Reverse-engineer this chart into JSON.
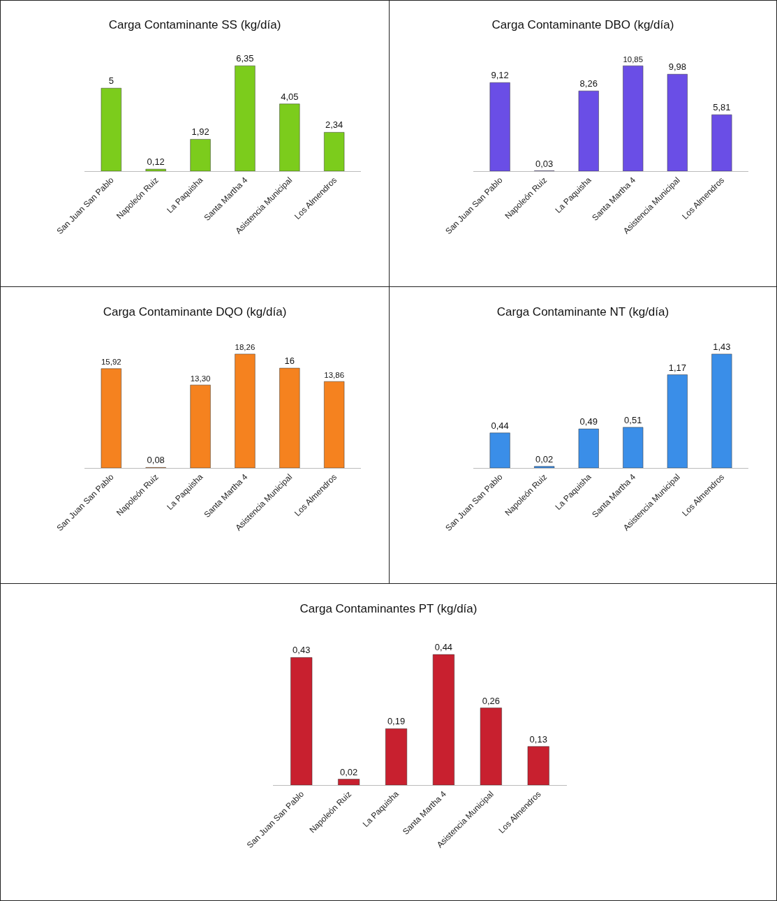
{
  "chart_data": [
    {
      "type": "bar",
      "title": "Carga Contaminante SS (kg/día)",
      "categories": [
        "San Juan San Pablo",
        "Napoleón Ruiz",
        "La Paquisha",
        "Santa Martha 4",
        "Asistencia Municipal",
        "Los Almendros"
      ],
      "values": [
        5,
        0.12,
        1.92,
        6.35,
        4.05,
        2.34
      ],
      "value_labels": [
        "5",
        "0,12",
        "1,92",
        "6,35",
        "4,05",
        "2,34"
      ],
      "color": "#7ccc1c",
      "legend": false,
      "grid": false
    },
    {
      "type": "bar",
      "title": "Carga Contaminante DBO (kg/día)",
      "categories": [
        "San Juan San Pablo",
        "Napoleón Ruiz",
        "La Paquisha",
        "Santa Martha 4",
        "Asistencia Municipal",
        "Los Almendros"
      ],
      "values": [
        9.12,
        0.03,
        8.26,
        10.85,
        9.98,
        5.81
      ],
      "value_labels": [
        "9,12",
        "0,03",
        "8,26",
        "10,85",
        "9,98",
        "5,81"
      ],
      "color": "#6a4ee6",
      "legend": false,
      "grid": false
    },
    {
      "type": "bar",
      "title": "Carga Contaminante DQO (kg/día)",
      "categories": [
        "San Juan San Pablo",
        "Napoleón Ruiz",
        "La Paquisha",
        "Santa Martha 4",
        "Asistencia Municipal",
        "Los Almendros"
      ],
      "values": [
        15.92,
        0.08,
        13.3,
        18.26,
        16,
        13.86
      ],
      "value_labels": [
        "15,92",
        "0,08",
        "13,30",
        "18,26",
        "16",
        "13,86"
      ],
      "color": "#f5821f",
      "legend": false,
      "grid": false
    },
    {
      "type": "bar",
      "title": "Carga Contaminante NT (kg/día)",
      "categories": [
        "San Juan San Pablo",
        "Napoleón Ruiz",
        "La Paquisha",
        "Santa Martha 4",
        "Asistencia Municipal",
        "Los Almendros"
      ],
      "values": [
        0.44,
        0.02,
        0.49,
        0.51,
        1.17,
        1.43
      ],
      "value_labels": [
        "0,44",
        "0,02",
        "0,49",
        "0,51",
        "1,17",
        "1,43"
      ],
      "color": "#3a8ee8",
      "legend": false,
      "grid": false
    },
    {
      "type": "bar",
      "title": "Carga Contaminantes PT (kg/día)",
      "categories": [
        "San Juan San Pablo",
        "Napoleón Ruiz",
        "La Paquisha",
        "Santa Martha 4",
        "Asistencia Municipal",
        "Los Almendros"
      ],
      "values": [
        0.43,
        0.02,
        0.19,
        0.44,
        0.26,
        0.13
      ],
      "value_labels": [
        "0,43",
        "0,02",
        "0,19",
        "0,44",
        "0,26",
        "0,13"
      ],
      "color": "#c8202f",
      "legend": false,
      "grid": false
    }
  ]
}
